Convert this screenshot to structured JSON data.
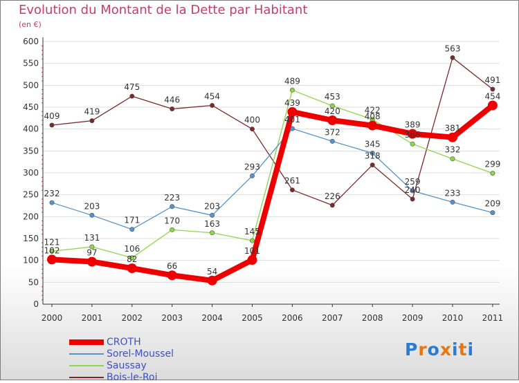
{
  "header": {
    "title": "Evolution du Montant de la Dette par Habitant",
    "subtitle": "(en €)"
  },
  "logo": {
    "text": "Proxiti",
    "colors": [
      "#2a7bd4",
      "#e8760e",
      "#2a7bd4",
      "#e8760e",
      "#2a7bd4",
      "#e8760e",
      "#2a7bd4"
    ]
  },
  "colors": {
    "title": "#c63c6e",
    "legend_text": "#3f51c7",
    "axis": "#333333",
    "grid": "#dddddd"
  },
  "chart_data": {
    "type": "line",
    "title": "Evolution du Montant de la Dette par Habitant",
    "subtitle": "(en €)",
    "x": [
      "2000",
      "2001",
      "2002",
      "2003",
      "2004",
      "2005",
      "2006",
      "2007",
      "2008",
      "2009",
      "2010",
      "2011"
    ],
    "ylim": [
      0,
      600
    ],
    "yticks": [
      0,
      50,
      100,
      150,
      200,
      250,
      300,
      350,
      400,
      450,
      500,
      550,
      600
    ],
    "grid": "horizontal, light gray",
    "legend_position": "bottom-left",
    "series": [
      {
        "name": "CROTH",
        "color": "#ee0000",
        "values": [
          102,
          97,
          82,
          66,
          54,
          101,
          439,
          420,
          408,
          389,
          381,
          454
        ]
      },
      {
        "name": "Sorel-Moussel",
        "color": "#5693c8",
        "values": [
          232,
          203,
          171,
          223,
          203,
          293,
          401,
          372,
          345,
          259,
          233,
          209
        ]
      },
      {
        "name": "Saussay",
        "color": "#8ed64a",
        "values": [
          121,
          131,
          106,
          170,
          163,
          145,
          489,
          453,
          422,
          366,
          332,
          299
        ]
      },
      {
        "name": "Bois-le-Roi",
        "color": "#7a2a2a",
        "values": [
          409,
          419,
          475,
          446,
          454,
          400,
          261,
          226,
          318,
          240,
          563,
          491
        ]
      }
    ]
  }
}
